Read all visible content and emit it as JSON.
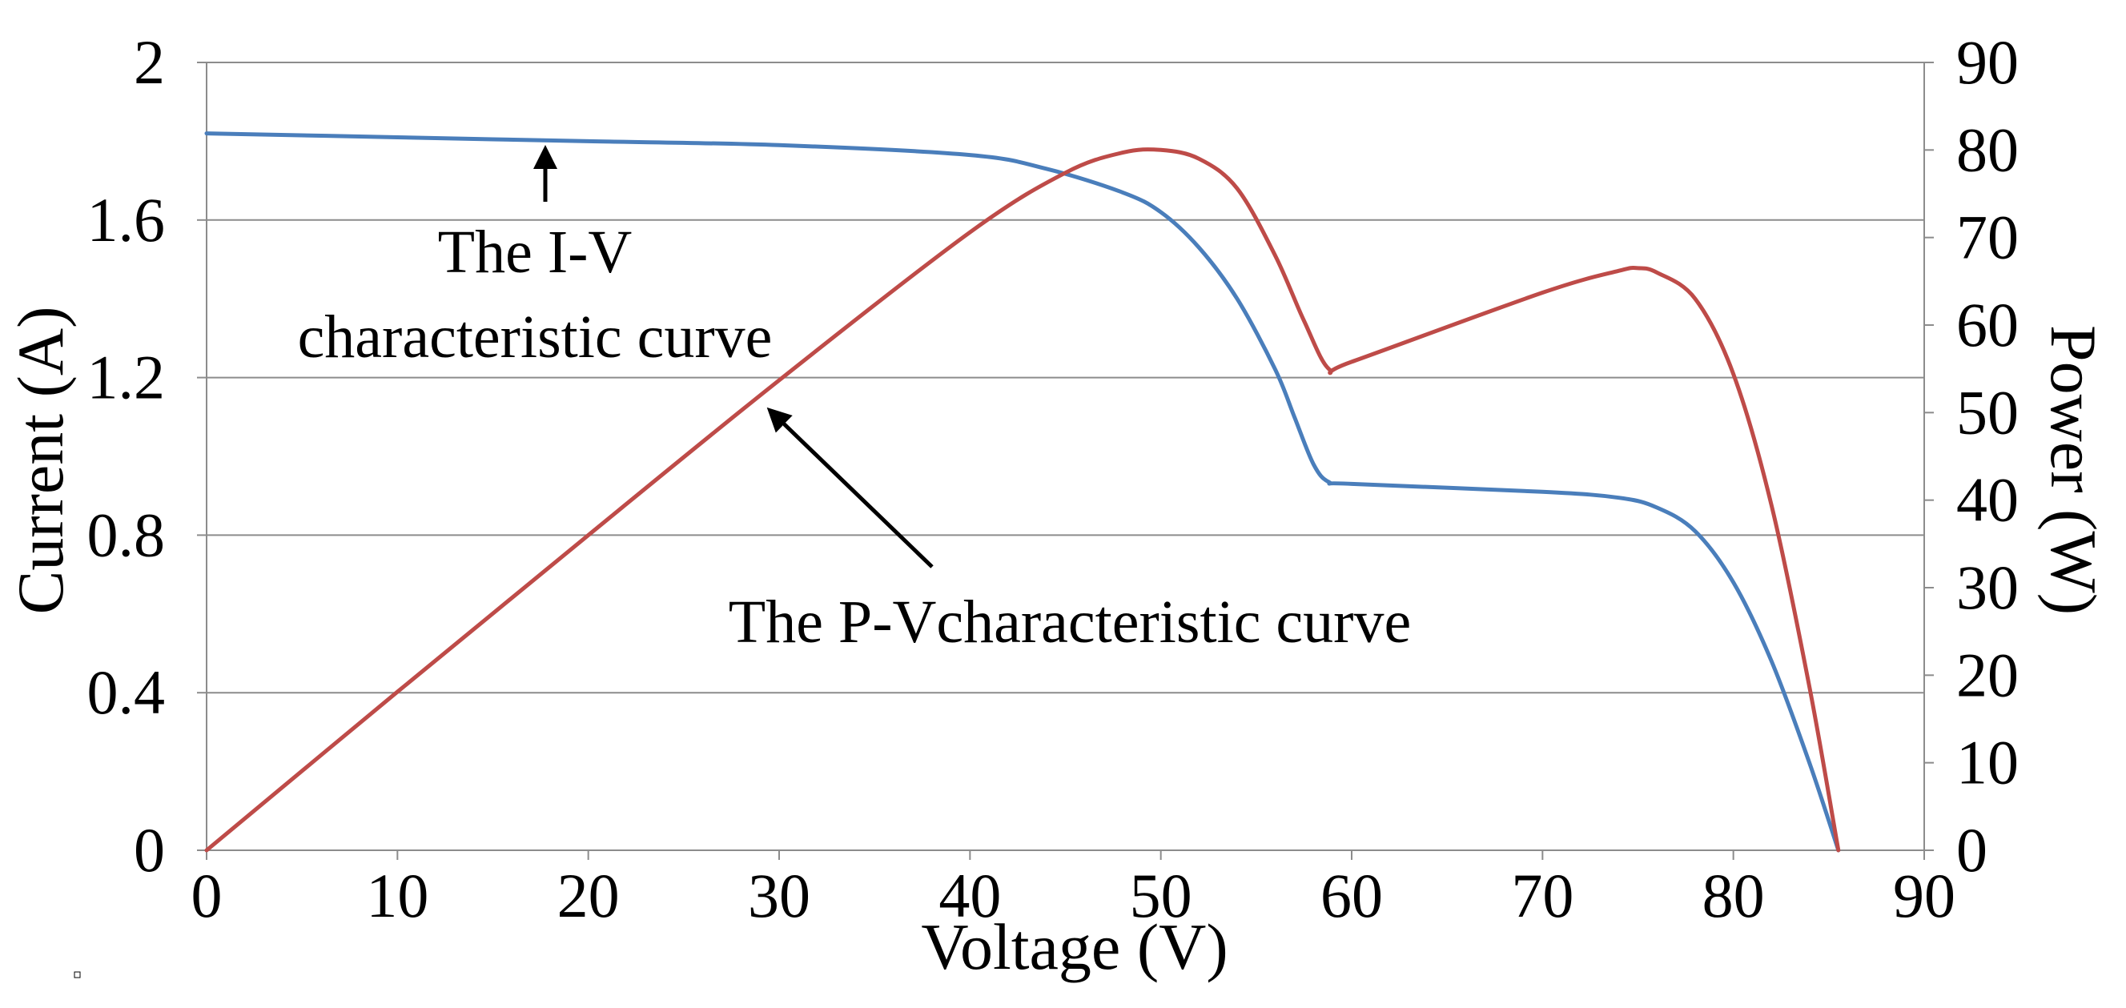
{
  "chart_data": {
    "type": "line",
    "title": "",
    "xlabel": "Voltage (V)",
    "ylabel": "Current (A)",
    "y2label": "Power (W)",
    "xlim": [
      0,
      90
    ],
    "ylim": [
      0,
      2
    ],
    "y2lim": [
      0,
      90
    ],
    "x_ticks": [
      0,
      10,
      20,
      30,
      40,
      50,
      60,
      70,
      80,
      90
    ],
    "x_tick_labels": [
      "0",
      "10",
      "20",
      "30",
      "40",
      "50",
      "60",
      "70",
      "80",
      "90"
    ],
    "y_ticks": [
      0,
      0.4,
      0.8,
      1.2,
      1.6,
      2
    ],
    "y_tick_labels": [
      "0",
      "0.4",
      "0.8",
      "1.2",
      "1.6",
      "2"
    ],
    "y2_ticks": [
      0,
      10,
      20,
      30,
      40,
      50,
      60,
      70,
      80,
      90
    ],
    "y2_tick_labels": [
      "0",
      "10",
      "20",
      "30",
      "40",
      "50",
      "60",
      "70",
      "80",
      "90"
    ],
    "grid": true,
    "series": [
      {
        "name": "I-V characteristic curve",
        "axis": "left",
        "color": "#4a7ebb",
        "x": [
          0,
          10,
          20,
          30,
          40,
          44,
          48,
          50,
          52,
          54,
          56,
          57,
          58,
          58.8,
          60,
          70,
          74,
          76,
          78,
          80,
          82,
          84,
          85.5
        ],
        "y": [
          1.82,
          1.81,
          1.8,
          1.79,
          1.765,
          1.73,
          1.67,
          1.62,
          1.53,
          1.4,
          1.22,
          1.1,
          0.98,
          0.935,
          0.93,
          0.91,
          0.895,
          0.87,
          0.81,
          0.68,
          0.48,
          0.22,
          0.0
        ]
      },
      {
        "name": "P-V characteristic curve",
        "axis": "right",
        "color": "#be4b48",
        "x": [
          0,
          10,
          20,
          30,
          40,
          45,
          48,
          50,
          52,
          54,
          56,
          57.5,
          58.8,
          60,
          70,
          74,
          75,
          76,
          78,
          80,
          82,
          84,
          85.5
        ],
        "y": [
          0,
          18.1,
          36.0,
          53.7,
          70.6,
          77.4,
          79.7,
          80.0,
          79.0,
          75.6,
          67.9,
          60.5,
          55.0,
          55.8,
          63.7,
          66.2,
          66.5,
          66.0,
          63.0,
          54.4,
          39.4,
          18.5,
          0.0
        ]
      }
    ],
    "annotations": [
      {
        "text_lines": [
          "The I-V",
          "characteristic curve"
        ],
        "target": "I-V characteristic curve",
        "arrow_to": [
          17.8,
          1.8
        ]
      },
      {
        "text_lines": [
          "The P-Vcharacteristic curve"
        ],
        "target": "P-V characteristic curve",
        "arrow_to_y2": [
          29.5,
          51.5
        ]
      }
    ]
  }
}
